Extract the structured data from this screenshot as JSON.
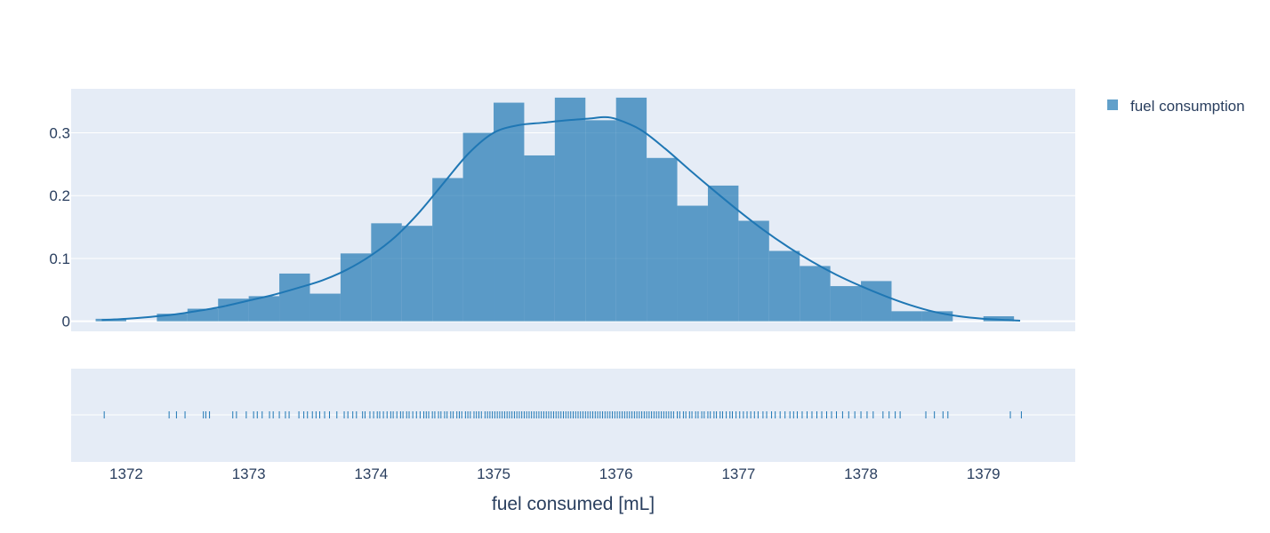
{
  "chart_data": {
    "type": "histogram",
    "xlabel": "fuel consumed [mL]",
    "ylabel": "",
    "xlim": [
      1371.55,
      1379.75
    ],
    "ylim": [
      -0.016,
      0.37
    ],
    "x_ticks": [
      1372,
      1373,
      1374,
      1375,
      1376,
      1377,
      1378,
      1379
    ],
    "y_ticks": [
      0,
      0.1,
      0.2,
      0.3
    ],
    "x_tick_labels": [
      "1372",
      "1373",
      "1374",
      "1375",
      "1376",
      "1377",
      "1378",
      "1379"
    ],
    "y_tick_labels": [
      "0",
      "0.1",
      "0.2",
      "0.3"
    ],
    "legend": {
      "position": "top-right",
      "entries": [
        "fuel consumption"
      ]
    },
    "grid": true,
    "colors": {
      "bar": "#1f77b4",
      "bar_opacity": 0.7,
      "plot_bg": "#e5ecf6",
      "grid": "#ffffff",
      "text": "#2a3f5f"
    },
    "series": [
      {
        "name": "fuel consumption",
        "kind": "histogram",
        "bin_width": 0.25,
        "bins": [
          {
            "start": 1371.75,
            "end": 1372.0,
            "value": 0.004
          },
          {
            "start": 1372.0,
            "end": 1372.25,
            "value": 0.0
          },
          {
            "start": 1372.25,
            "end": 1372.5,
            "value": 0.012
          },
          {
            "start": 1372.5,
            "end": 1372.75,
            "value": 0.02
          },
          {
            "start": 1372.75,
            "end": 1373.0,
            "value": 0.036
          },
          {
            "start": 1373.0,
            "end": 1373.25,
            "value": 0.04
          },
          {
            "start": 1373.25,
            "end": 1373.5,
            "value": 0.076
          },
          {
            "start": 1373.5,
            "end": 1373.75,
            "value": 0.044
          },
          {
            "start": 1373.75,
            "end": 1374.0,
            "value": 0.108
          },
          {
            "start": 1374.0,
            "end": 1374.25,
            "value": 0.156
          },
          {
            "start": 1374.25,
            "end": 1374.5,
            "value": 0.152
          },
          {
            "start": 1374.5,
            "end": 1374.75,
            "value": 0.228
          },
          {
            "start": 1374.75,
            "end": 1375.0,
            "value": 0.3
          },
          {
            "start": 1375.0,
            "end": 1375.25,
            "value": 0.348
          },
          {
            "start": 1375.25,
            "end": 1375.5,
            "value": 0.264
          },
          {
            "start": 1375.5,
            "end": 1375.75,
            "value": 0.356
          },
          {
            "start": 1375.75,
            "end": 1376.0,
            "value": 0.32
          },
          {
            "start": 1376.0,
            "end": 1376.25,
            "value": 0.356
          },
          {
            "start": 1376.25,
            "end": 1376.5,
            "value": 0.26
          },
          {
            "start": 1376.5,
            "end": 1376.75,
            "value": 0.184
          },
          {
            "start": 1376.75,
            "end": 1377.0,
            "value": 0.216
          },
          {
            "start": 1377.0,
            "end": 1377.25,
            "value": 0.16
          },
          {
            "start": 1377.25,
            "end": 1377.5,
            "value": 0.112
          },
          {
            "start": 1377.5,
            "end": 1377.75,
            "value": 0.088
          },
          {
            "start": 1377.75,
            "end": 1378.0,
            "value": 0.056
          },
          {
            "start": 1378.0,
            "end": 1378.25,
            "value": 0.064
          },
          {
            "start": 1378.25,
            "end": 1378.5,
            "value": 0.016
          },
          {
            "start": 1378.5,
            "end": 1378.75,
            "value": 0.016
          },
          {
            "start": 1378.75,
            "end": 1379.0,
            "value": 0.0
          },
          {
            "start": 1379.0,
            "end": 1379.25,
            "value": 0.008
          }
        ]
      },
      {
        "name": "fuel consumption",
        "kind": "kde_curve",
        "x": [
          1371.8,
          1372.0,
          1372.2,
          1372.4,
          1372.6,
          1372.8,
          1373.0,
          1373.2,
          1373.4,
          1373.6,
          1373.8,
          1374.0,
          1374.2,
          1374.4,
          1374.6,
          1374.8,
          1375.0,
          1375.2,
          1375.4,
          1375.6,
          1375.8,
          1375.9,
          1376.0,
          1376.2,
          1376.4,
          1376.6,
          1376.8,
          1377.0,
          1377.2,
          1377.4,
          1377.6,
          1377.8,
          1378.0,
          1378.2,
          1378.4,
          1378.6,
          1378.8,
          1379.0,
          1379.2,
          1379.3
        ],
        "y": [
          0.002,
          0.004,
          0.007,
          0.011,
          0.017,
          0.024,
          0.033,
          0.042,
          0.053,
          0.065,
          0.082,
          0.105,
          0.135,
          0.175,
          0.222,
          0.268,
          0.3,
          0.312,
          0.316,
          0.32,
          0.323,
          0.325,
          0.322,
          0.305,
          0.275,
          0.241,
          0.208,
          0.176,
          0.146,
          0.119,
          0.095,
          0.074,
          0.056,
          0.04,
          0.026,
          0.015,
          0.008,
          0.004,
          0.002,
          0.001
        ]
      },
      {
        "name": "fuel consumption",
        "kind": "rug",
        "x": [
          1371.82,
          1372.35,
          1372.41,
          1372.48,
          1372.63,
          1372.65,
          1372.68,
          1372.87,
          1372.9,
          1372.98,
          1373.04,
          1373.07,
          1373.11,
          1373.17,
          1373.2,
          1373.25,
          1373.3,
          1373.33,
          1373.41,
          1373.45,
          1373.48,
          1373.52,
          1373.55,
          1373.58,
          1373.62,
          1373.66,
          1373.72,
          1373.78,
          1373.81,
          1373.85,
          1373.88,
          1373.93,
          1373.95,
          1373.99,
          1374.02,
          1374.05,
          1374.07,
          1374.1,
          1374.13,
          1374.16,
          1374.18,
          1374.21,
          1374.24,
          1374.26,
          1374.29,
          1374.31,
          1374.34,
          1374.37,
          1374.4,
          1374.43,
          1374.45,
          1374.47,
          1374.5,
          1374.52,
          1374.55,
          1374.57,
          1374.6,
          1374.62,
          1374.65,
          1374.67,
          1374.7,
          1374.72,
          1374.74,
          1374.77,
          1374.79,
          1374.81,
          1374.84,
          1374.86,
          1374.88,
          1374.9,
          1374.93,
          1374.95,
          1374.97,
          1374.99,
          1375.01,
          1375.03,
          1375.05,
          1375.07,
          1375.09,
          1375.11,
          1375.13,
          1375.15,
          1375.17,
          1375.19,
          1375.21,
          1375.23,
          1375.25,
          1375.27,
          1375.29,
          1375.31,
          1375.33,
          1375.35,
          1375.37,
          1375.39,
          1375.41,
          1375.43,
          1375.45,
          1375.47,
          1375.49,
          1375.51,
          1375.53,
          1375.55,
          1375.57,
          1375.59,
          1375.61,
          1375.63,
          1375.65,
          1375.67,
          1375.69,
          1375.71,
          1375.73,
          1375.75,
          1375.77,
          1375.79,
          1375.81,
          1375.83,
          1375.85,
          1375.87,
          1375.89,
          1375.91,
          1375.93,
          1375.95,
          1375.97,
          1375.99,
          1376.01,
          1376.03,
          1376.05,
          1376.07,
          1376.09,
          1376.11,
          1376.13,
          1376.15,
          1376.17,
          1376.19,
          1376.21,
          1376.23,
          1376.25,
          1376.27,
          1376.29,
          1376.31,
          1376.33,
          1376.35,
          1376.37,
          1376.39,
          1376.41,
          1376.43,
          1376.45,
          1376.47,
          1376.5,
          1376.52,
          1376.55,
          1376.57,
          1376.6,
          1376.62,
          1376.65,
          1376.67,
          1376.7,
          1376.72,
          1376.75,
          1376.77,
          1376.8,
          1376.82,
          1376.85,
          1376.87,
          1376.9,
          1376.93,
          1376.95,
          1376.98,
          1377.01,
          1377.04,
          1377.07,
          1377.1,
          1377.13,
          1377.16,
          1377.2,
          1377.23,
          1377.27,
          1377.3,
          1377.34,
          1377.38,
          1377.42,
          1377.45,
          1377.48,
          1377.52,
          1377.56,
          1377.6,
          1377.64,
          1377.68,
          1377.72,
          1377.76,
          1377.8,
          1377.85,
          1377.9,
          1377.95,
          1378.0,
          1378.05,
          1378.1,
          1378.18,
          1378.23,
          1378.28,
          1378.32,
          1378.53,
          1378.6,
          1378.67,
          1378.71,
          1379.22,
          1379.31
        ]
      }
    ]
  }
}
